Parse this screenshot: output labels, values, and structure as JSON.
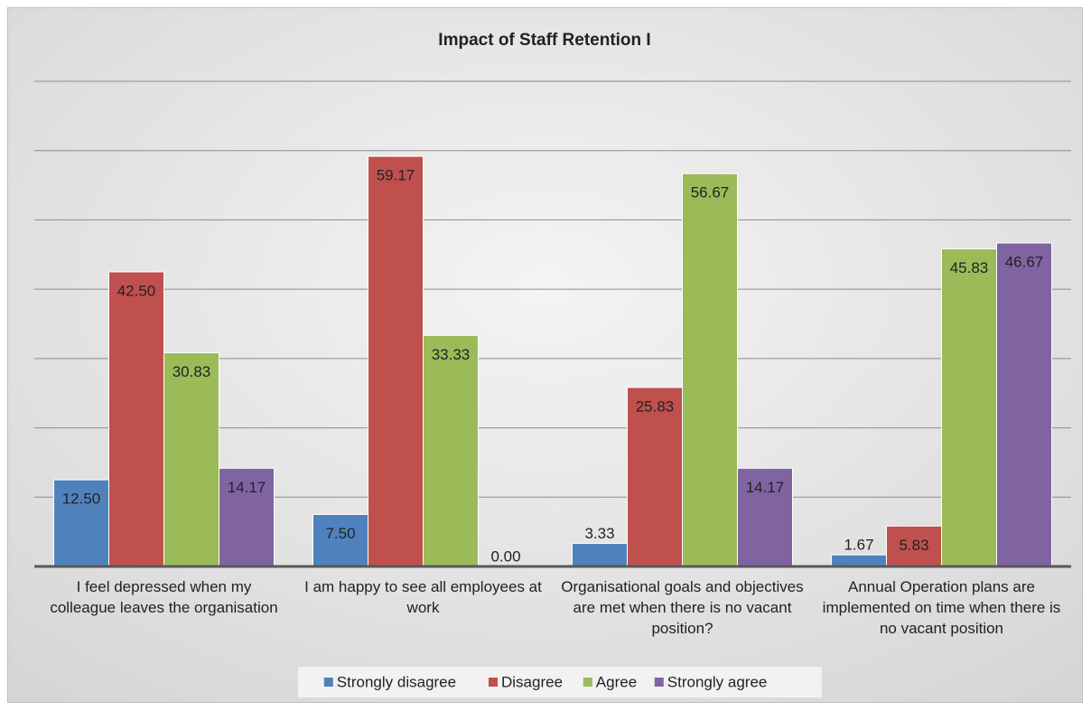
{
  "chart_data": {
    "type": "bar",
    "title": "Impact of Staff Retention I",
    "categories": [
      "I feel depressed when my colleague leaves the organisation",
      "I am happy to see all employees at work",
      "Organisational goals and objectives are met when there is no vacant position?",
      "Annual Operation plans are implemented on time when there is no vacant position"
    ],
    "series": [
      {
        "name": "Strongly disagree",
        "color": "#4f81bd",
        "values": [
          12.5,
          7.5,
          3.33,
          1.67
        ],
        "value_labels": [
          "12.50",
          "7.50",
          "3.33",
          "1.67"
        ]
      },
      {
        "name": "Disagree",
        "color": "#c0504d",
        "values": [
          42.5,
          59.17,
          25.83,
          5.83
        ],
        "value_labels": [
          "42.50",
          "59.17",
          "25.83",
          "5.83"
        ]
      },
      {
        "name": "Agree",
        "color": "#9bbb59",
        "values": [
          30.83,
          33.33,
          56.67,
          45.83
        ],
        "value_labels": [
          "30.83",
          "33.33",
          "56.67",
          "45.83"
        ]
      },
      {
        "name": "Strongly agree",
        "color": "#8064a2",
        "values": [
          14.17,
          0,
          14.17,
          46.67
        ],
        "value_labels": [
          "14.17",
          "0.00",
          "14.17",
          "46.67"
        ]
      }
    ],
    "ylim": [
      0,
      70
    ],
    "yticks": [
      0,
      10,
      20,
      30,
      40,
      50,
      60,
      70
    ],
    "grid": true,
    "legend": "bottom"
  }
}
